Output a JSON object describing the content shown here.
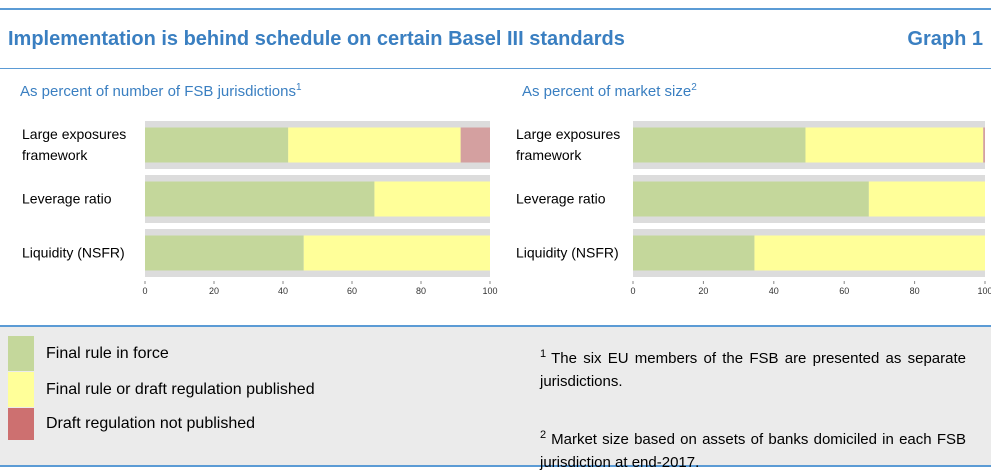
{
  "header": {
    "title": "Implementation is behind schedule on certain Basel III standards",
    "label": "Graph 1"
  },
  "chart_data": [
    {
      "type": "bar",
      "orientation": "horizontal",
      "stacked": true,
      "title": "As percent of number of FSB jurisdictions",
      "title_note": "1",
      "categories": [
        "Large exposures framework",
        "Leverage ratio",
        "Liquidity (NSFR)"
      ],
      "series": [
        {
          "name": "Final rule in force",
          "color": "#c4d79b",
          "values": [
            41.5,
            66.5,
            46
          ]
        },
        {
          "name": "Final rule or draft regulation published",
          "color": "#ffff99",
          "values": [
            50,
            33.5,
            54
          ]
        },
        {
          "name": "Draft regulation not published",
          "color": "#d4a0a0",
          "values": [
            8.5,
            0,
            0
          ]
        }
      ],
      "xlim": [
        0,
        100
      ],
      "xticks": [
        0,
        20,
        40,
        60,
        80,
        100
      ]
    },
    {
      "type": "bar",
      "orientation": "horizontal",
      "stacked": true,
      "title": "As percent of market size",
      "title_note": "2",
      "categories": [
        "Large exposures framework",
        "Leverage ratio",
        "Liquidity (NSFR)"
      ],
      "series": [
        {
          "name": "Final rule in force",
          "color": "#c4d79b",
          "values": [
            49,
            67,
            34.5
          ]
        },
        {
          "name": "Final rule or draft regulation published",
          "color": "#ffff99",
          "values": [
            50.5,
            33,
            65.5
          ]
        },
        {
          "name": "Draft regulation not published",
          "color": "#d4a0a0",
          "values": [
            0.5,
            0,
            0
          ]
        }
      ],
      "xlim": [
        0,
        100
      ],
      "xticks": [
        0,
        20,
        40,
        60,
        80,
        100
      ]
    }
  ],
  "footnotes": [
    {
      "marker": "1",
      "text": "The six EU members of the FSB are presented as separate jurisdictions."
    },
    {
      "marker": "2",
      "text": "Market size based on assets of banks domiciled in each FSB jurisdiction at end-2017."
    }
  ]
}
